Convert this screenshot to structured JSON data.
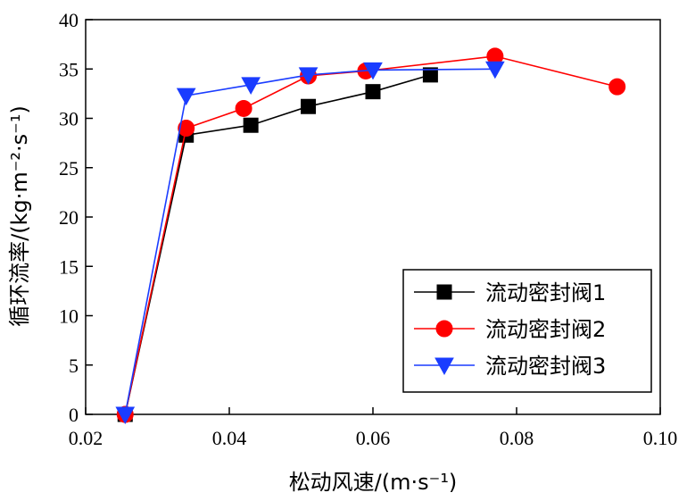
{
  "chart_data": {
    "type": "line",
    "xlabel": "松动风速/(m·s⁻¹)",
    "ylabel": "循环流率/(kg·m⁻²·s⁻¹)",
    "xlim": [
      0.02,
      0.1
    ],
    "ylim": [
      0,
      40
    ],
    "xticks": [
      "0.02",
      "0.04",
      "0.06",
      "0.08",
      "0.10"
    ],
    "yticks": [
      "0",
      "5",
      "10",
      "15",
      "20",
      "25",
      "30",
      "35",
      "40"
    ],
    "grid": false,
    "legend_position": "bottom-right",
    "series": [
      {
        "name": "流动密封阀1",
        "color": "#000000",
        "marker": "square",
        "x": [
          0.0255,
          0.034,
          0.043,
          0.051,
          0.06,
          0.068
        ],
        "y": [
          0.0,
          28.3,
          29.3,
          31.2,
          32.7,
          34.4
        ]
      },
      {
        "name": "流动密封阀2",
        "color": "#ff0000",
        "marker": "circle",
        "x": [
          0.0255,
          0.034,
          0.042,
          0.051,
          0.059,
          0.077,
          0.094
        ],
        "y": [
          0.0,
          29.0,
          31.0,
          34.3,
          34.8,
          36.3,
          33.2
        ]
      },
      {
        "name": "流动密封阀3",
        "color": "#1a3cff",
        "marker": "triangle-down",
        "x": [
          0.0255,
          0.034,
          0.043,
          0.051,
          0.06,
          0.077
        ],
        "y": [
          0.0,
          32.3,
          33.4,
          34.4,
          34.9,
          35.0
        ]
      }
    ]
  }
}
